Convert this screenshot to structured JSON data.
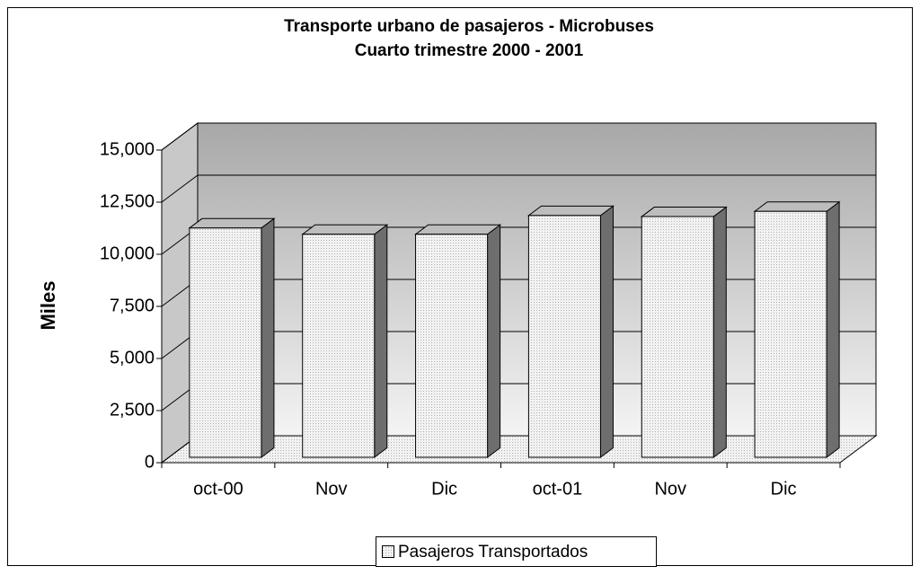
{
  "chart_data": {
    "type": "bar3d",
    "title": "Transporte urbano de pasajeros - Microbuses",
    "subtitle": "Cuarto trimestre 2000 - 2001",
    "y_label": "Miles",
    "categories": [
      "oct-00",
      "Nov",
      "Dic",
      "oct-01",
      "Nov",
      "Dic"
    ],
    "series": [
      {
        "name": "Pasajeros Transportados",
        "color": "#eeeeee",
        "values": [
          11000,
          10700,
          10700,
          11600,
          11550,
          11800
        ]
      }
    ],
    "ylim": [
      0,
      15000
    ],
    "yticks": [
      0,
      {
        "value": 2500,
        "label": "2,500"
      },
      {
        "value": 5000,
        "label": "5,000"
      },
      {
        "value": 7500,
        "label": "7,500"
      },
      {
        "value": 10000,
        "label": "10,000"
      },
      {
        "value": 12500,
        "label": "12,500"
      },
      {
        "value": 15000,
        "label": "15,000"
      }
    ],
    "grid": true,
    "legend": "bottom"
  }
}
